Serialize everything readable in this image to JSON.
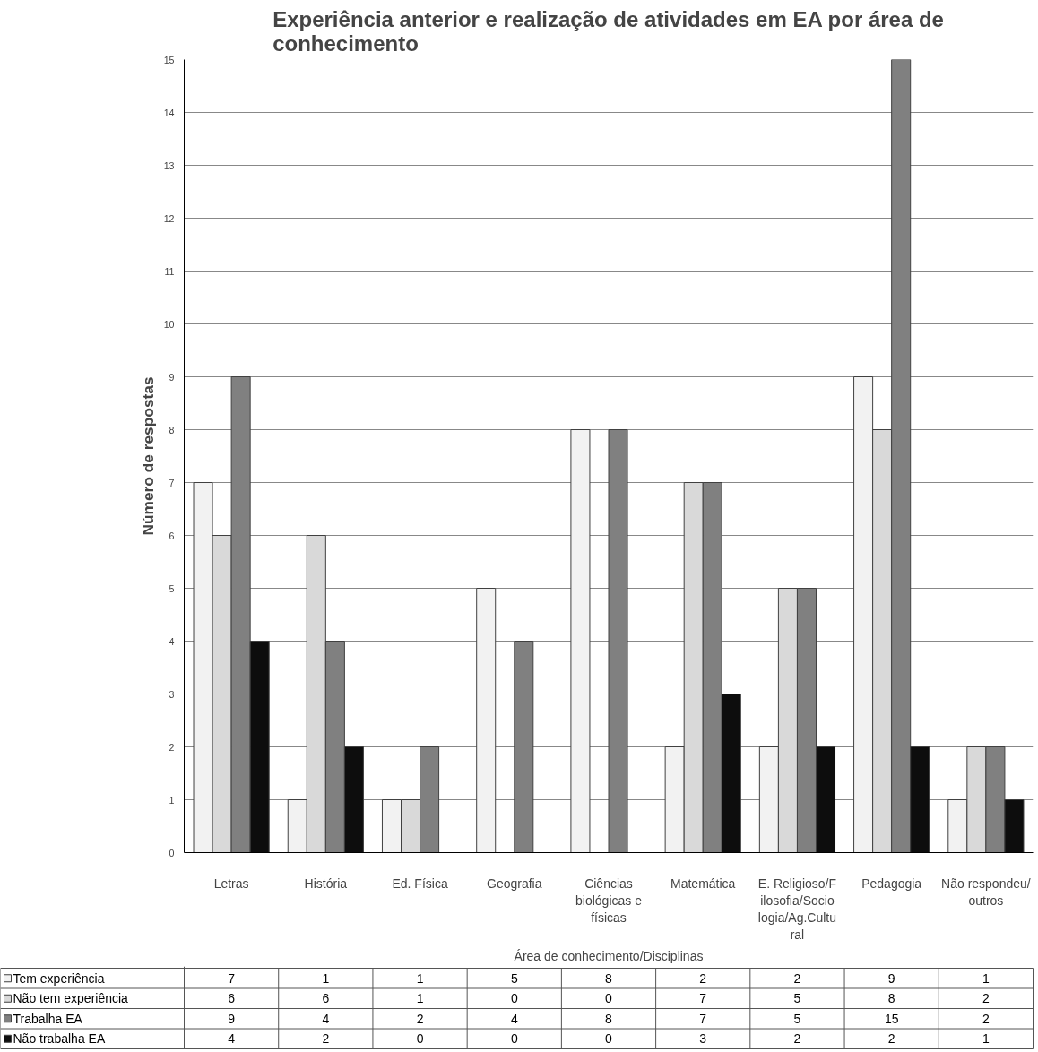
{
  "chart_data": {
    "type": "bar",
    "title": "Experiência anterior e realização de atividades em EA por área de conhecimento",
    "xlabel": "Área de conhecimento/Disciplinas",
    "ylabel": "Número de respostas",
    "categories": [
      "Letras",
      "História",
      "Ed. Física",
      "Geografia",
      "Ciências biológicas e físicas",
      "Matemática",
      "E. Religioso/Filosofia/Sociologia/Ag.Cultural",
      "Pedagogia",
      "Não respondeu/outros"
    ],
    "series": [
      {
        "name": "Tem experiência",
        "color": "#f2f2f2",
        "values": [
          7,
          1,
          1,
          5,
          8,
          2,
          2,
          9,
          1
        ]
      },
      {
        "name": "Não tem experiência",
        "color": "#d9d9d9",
        "values": [
          6,
          6,
          1,
          0,
          0,
          7,
          5,
          8,
          2
        ]
      },
      {
        "name": "Trabalha EA",
        "color": "#808080",
        "values": [
          9,
          4,
          2,
          4,
          8,
          7,
          5,
          15,
          2
        ]
      },
      {
        "name": "Não trabalha EA",
        "color": "#0d0d0d",
        "values": [
          4,
          2,
          0,
          0,
          0,
          3,
          2,
          2,
          1
        ]
      }
    ],
    "ylim": [
      0,
      15
    ],
    "yticks": [
      0,
      1,
      2,
      3,
      4,
      5,
      6,
      7,
      8,
      9,
      10,
      11,
      12,
      13,
      14,
      15
    ],
    "grid": "y",
    "legend": "bottom",
    "data_labels": true
  }
}
